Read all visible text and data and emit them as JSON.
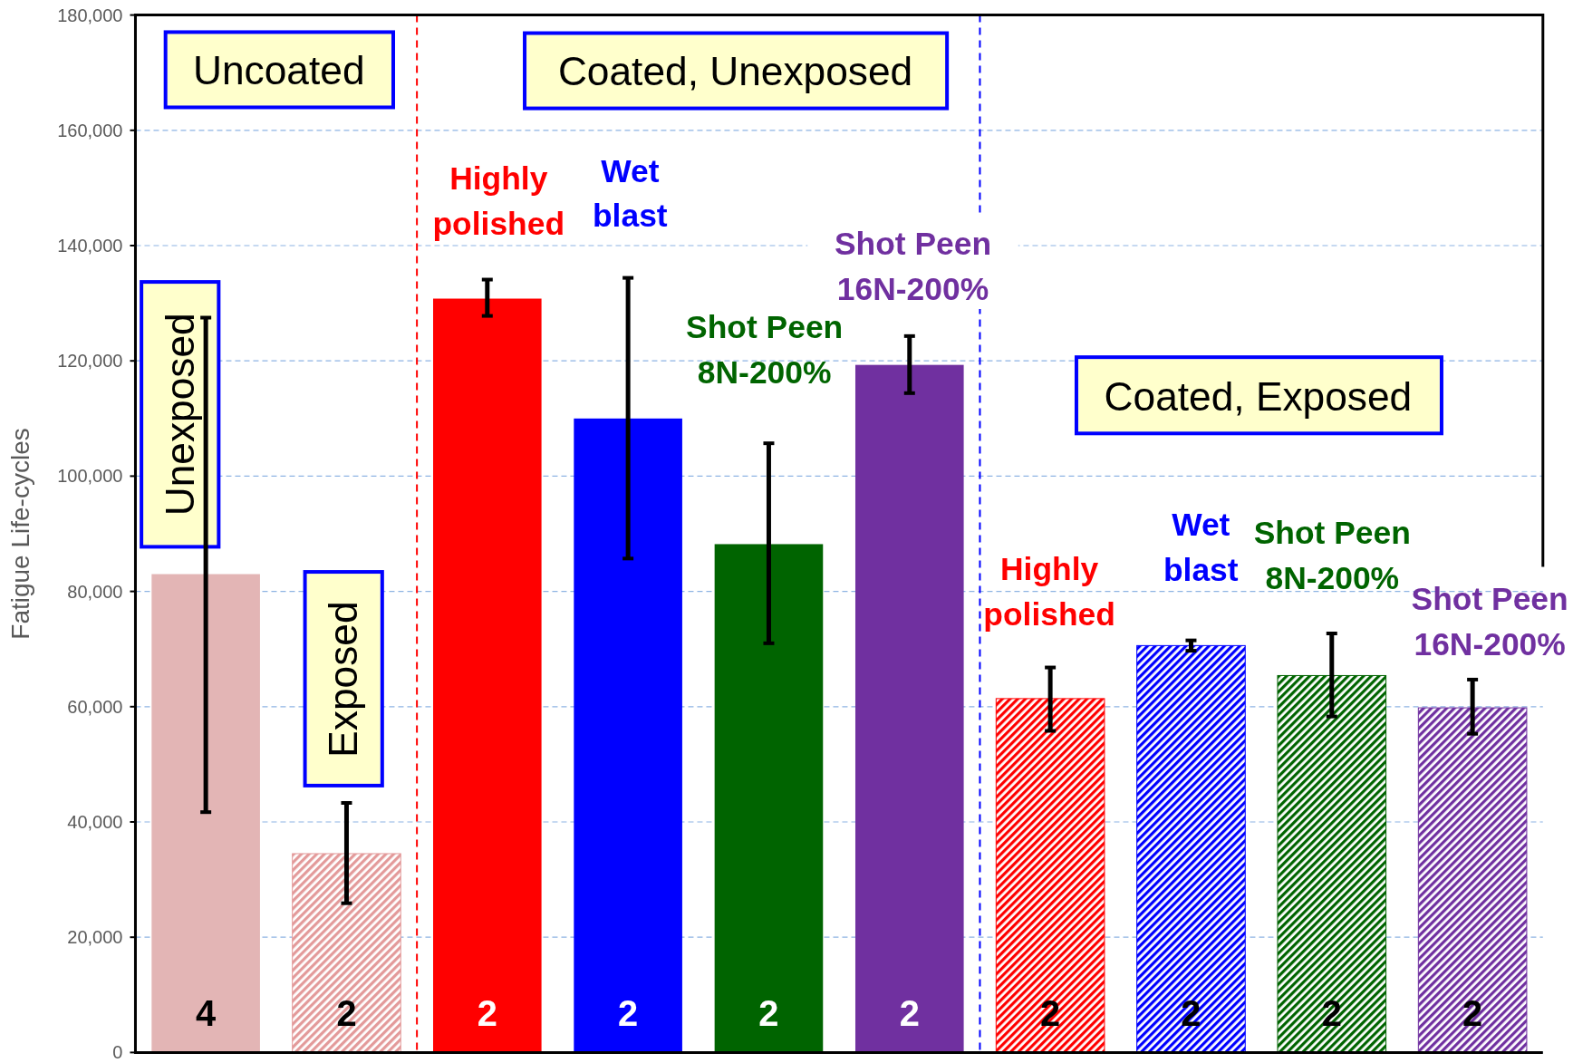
{
  "chart_data": {
    "type": "bar",
    "ylabel": "Fatigue Life-cycles",
    "categories": [
      null,
      null,
      null,
      null,
      null,
      null,
      null,
      null,
      null,
      null
    ],
    "values": [
      83000,
      34500,
      130800,
      110000,
      88200,
      119300,
      61400,
      70600,
      65400,
      59800
    ],
    "colors": [
      "#e3b5b5",
      "#e39a9a",
      "#ff0000",
      "#0000ff",
      "#006400",
      "#7030a0",
      "#ff0000",
      "#0000ff",
      "#006400",
      "#7030a0"
    ],
    "errors": [
      [
        41700,
        127500
      ],
      [
        25900,
        43300
      ],
      [
        127800,
        134100
      ],
      [
        85700,
        134400
      ],
      [
        71000,
        105700
      ],
      [
        114400,
        124300
      ],
      [
        55800,
        66800
      ],
      [
        69700,
        71500
      ],
      [
        58300,
        72700
      ],
      [
        55300,
        64700
      ]
    ],
    "ylim": [
      0,
      180000
    ],
    "yticks": [
      0,
      {
        "value": 20000,
        "label": "20,000"
      },
      {
        "value": 40000,
        "label": "40,000"
      },
      {
        "value": 60000,
        "label": "60,000"
      },
      {
        "value": 80000,
        "label": "80,000"
      },
      {
        "value": 100000,
        "label": "100,000"
      },
      {
        "value": 120000,
        "label": "120,000"
      },
      {
        "value": 140000,
        "label": "140,000"
      },
      {
        "value": 160000,
        "label": "160,000"
      },
      {
        "value": 180000,
        "label": "180,000"
      }
    ],
    "grid": "y",
    "annotations": [
      "Uncoated",
      "Coated, Unexposed",
      "Coated, Exposed",
      "Unexposed",
      "Exposed",
      "Highly\npolished",
      "Wet\nblast",
      "Shot Peen\n8N-200%",
      "Shot Peen\n16N-200%",
      "Highly\npolished",
      "Wet\nblast",
      "Shot Peen\n8N-200%",
      "Shot Peen\n16N-200%",
      "4",
      "2",
      "2",
      "2",
      "2",
      "2",
      "2",
      "2",
      "2",
      "2"
    ]
  }
}
